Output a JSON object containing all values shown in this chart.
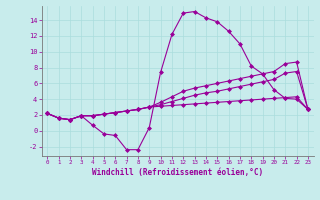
{
  "xlabel": "Windchill (Refroidissement éolien,°C)",
  "bg_color": "#c8ecec",
  "line_color": "#990099",
  "grid_color": "#aadddd",
  "xlim": [
    -0.5,
    23.5
  ],
  "ylim": [
    -3.2,
    15.8
  ],
  "xticks": [
    0,
    1,
    2,
    3,
    4,
    5,
    6,
    7,
    8,
    9,
    10,
    11,
    12,
    13,
    14,
    15,
    16,
    17,
    18,
    19,
    20,
    21,
    22,
    23
  ],
  "yticks": [
    -2,
    0,
    2,
    4,
    6,
    8,
    10,
    12,
    14
  ],
  "series": [
    [
      2.2,
      1.6,
      1.4,
      1.9,
      0.7,
      -0.4,
      -0.6,
      -2.4,
      -2.4,
      0.4,
      7.4,
      12.2,
      14.9,
      15.1,
      14.3,
      13.8,
      12.6,
      11.0,
      8.2,
      7.2,
      5.2,
      4.1,
      4.0,
      2.7
    ],
    [
      2.2,
      1.6,
      1.4,
      1.9,
      1.9,
      2.1,
      2.3,
      2.5,
      2.7,
      3.0,
      3.3,
      3.7,
      4.1,
      4.5,
      4.8,
      5.0,
      5.3,
      5.6,
      5.9,
      6.2,
      6.5,
      7.3,
      7.5,
      2.7
    ],
    [
      2.2,
      1.6,
      1.4,
      1.9,
      1.9,
      2.1,
      2.3,
      2.5,
      2.7,
      3.0,
      3.6,
      4.3,
      5.0,
      5.4,
      5.7,
      6.0,
      6.3,
      6.6,
      6.9,
      7.2,
      7.5,
      8.5,
      8.7,
      2.7
    ],
    [
      2.2,
      1.6,
      1.4,
      1.9,
      1.9,
      2.1,
      2.3,
      2.5,
      2.7,
      3.0,
      3.1,
      3.2,
      3.3,
      3.4,
      3.5,
      3.6,
      3.7,
      3.8,
      3.9,
      4.0,
      4.1,
      4.2,
      4.3,
      2.7
    ]
  ]
}
